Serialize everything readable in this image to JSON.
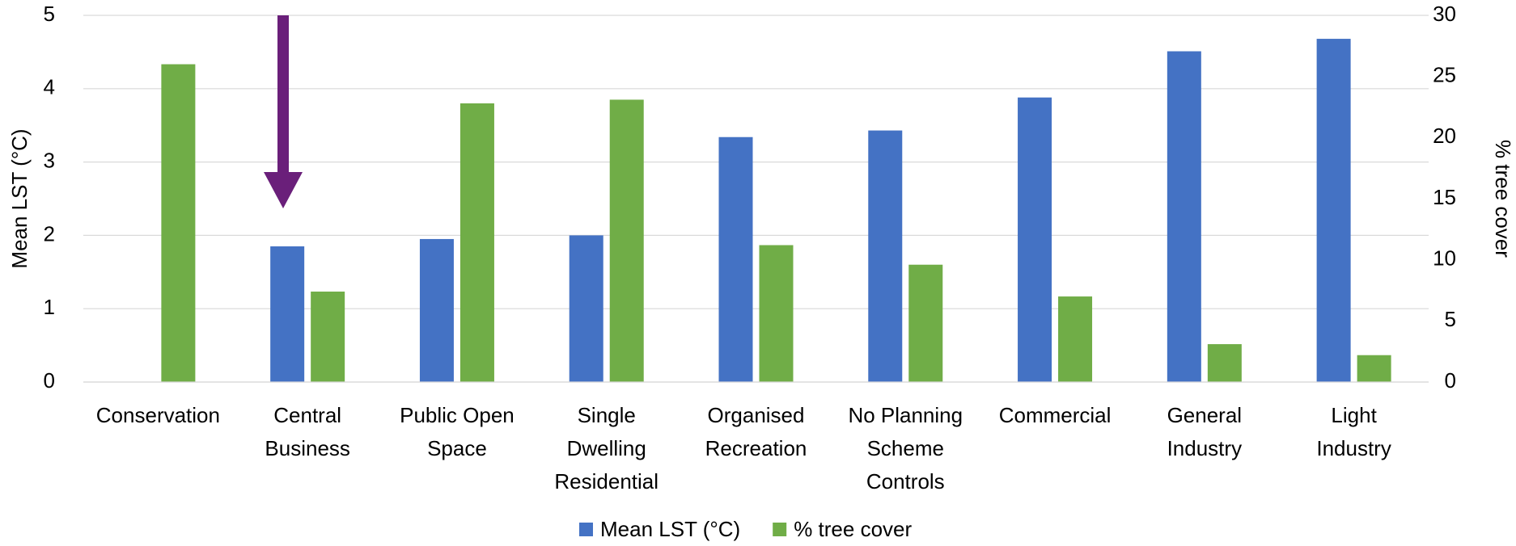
{
  "chart_data": {
    "type": "bar",
    "categories": [
      "Conservation",
      "Central\nBusiness",
      "Public Open\nSpace",
      "Single\nDwelling\nResidential",
      "Organised\nRecreation",
      "No Planning\nScheme\nControls",
      "Commercial",
      "General\nIndustry",
      "Light\nIndustry"
    ],
    "series": [
      {
        "name": "Mean LST (°C)",
        "color": "#4472c4",
        "values": [
          null,
          1.85,
          1.95,
          2.0,
          3.34,
          3.43,
          3.88,
          4.51,
          4.68
        ]
      },
      {
        "name": "% tree cover",
        "color": "#70ad47",
        "axis": "y2",
        "values": [
          26.0,
          7.4,
          22.8,
          23.1,
          11.2,
          9.6,
          7.0,
          3.1,
          2.2
        ]
      }
    ],
    "y_label": "Mean LST (°C)",
    "y2_label": "% tree cover",
    "ylim": [
      0,
      5
    ],
    "yticks": [
      0,
      1,
      2,
      3,
      4,
      5
    ],
    "y2lim": [
      0,
      30
    ],
    "y2ticks": [
      0,
      5,
      10,
      15,
      20,
      25,
      30
    ],
    "grid": true,
    "legend": "bottom"
  }
}
